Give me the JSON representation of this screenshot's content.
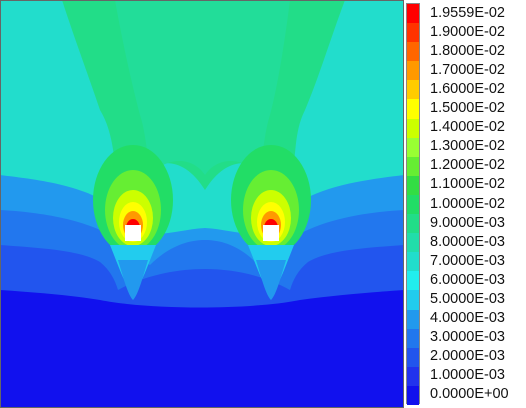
{
  "legend": {
    "labels": [
      "1.9559E-02",
      "1.9000E-02",
      "1.8000E-02",
      "1.7000E-02",
      "1.6000E-02",
      "1.5000E-02",
      "1.4000E-02",
      "1.3000E-02",
      "1.2000E-02",
      "1.1000E-02",
      "1.0000E-02",
      "9.0000E-03",
      "8.0000E-03",
      "7.0000E-03",
      "6.0000E-03",
      "5.0000E-03",
      "4.0000E-03",
      "3.0000E-03",
      "2.0000E-03",
      "1.0000E-03",
      "0.0000E+00"
    ],
    "colors": [
      "#ff0000",
      "#ff3300",
      "#ff6600",
      "#ff9900",
      "#ffcc00",
      "#ffff00",
      "#ccff00",
      "#99ff33",
      "#66ee33",
      "#33dd44",
      "#22dd66",
      "#22dd88",
      "#22ddaa",
      "#22ddcc",
      "#22eeee",
      "#22ccee",
      "#2299ee",
      "#2277ee",
      "#2255ee",
      "#2233ee",
      "#1111ee"
    ]
  }
}
